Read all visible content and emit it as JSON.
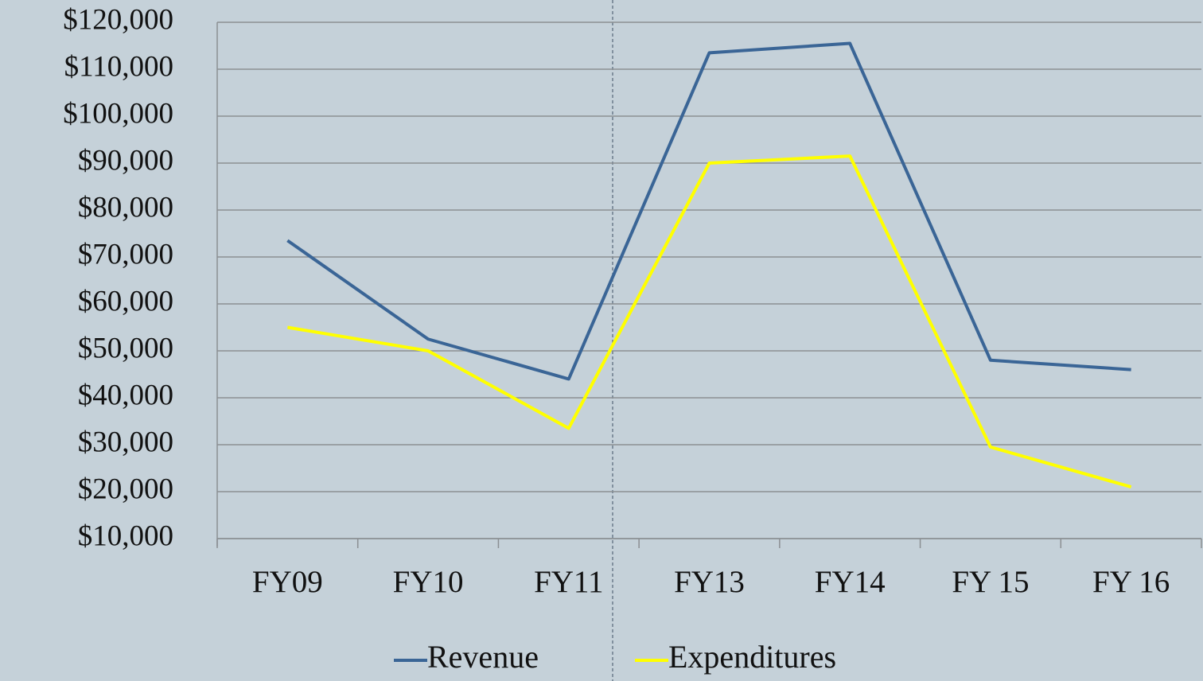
{
  "chart_data": {
    "type": "line",
    "categories": [
      "FY09",
      "FY10",
      "FY11",
      "FY13",
      "FY14",
      "FY 15",
      "FY 16"
    ],
    "series": [
      {
        "name": "Revenue",
        "color": "#3a6596",
        "values": [
          73500,
          52500,
          44000,
          113500,
          115500,
          48000,
          46000
        ]
      },
      {
        "name": "Expenditures",
        "color": "#ffff00",
        "values": [
          55000,
          50000,
          33500,
          90000,
          91500,
          29500,
          21000
        ]
      }
    ],
    "ylim": [
      10000,
      120000
    ],
    "yticks": [
      {
        "value": 10000,
        "label": "$10,000"
      },
      {
        "value": 20000,
        "label": "$20,000"
      },
      {
        "value": 30000,
        "label": "$30,000"
      },
      {
        "value": 40000,
        "label": "$40,000"
      },
      {
        "value": 50000,
        "label": "$50,000"
      },
      {
        "value": 60000,
        "label": "$60,000"
      },
      {
        "value": 70000,
        "label": "$70,000"
      },
      {
        "value": 80000,
        "label": "$80,000"
      },
      {
        "value": 90000,
        "label": "$90,000"
      },
      {
        "value": 100000,
        "label": "$100,000"
      },
      {
        "value": 110000,
        "label": "$110,000"
      },
      {
        "value": 120000,
        "label": "$120,000"
      }
    ],
    "grid": true,
    "legend": "bottom"
  }
}
